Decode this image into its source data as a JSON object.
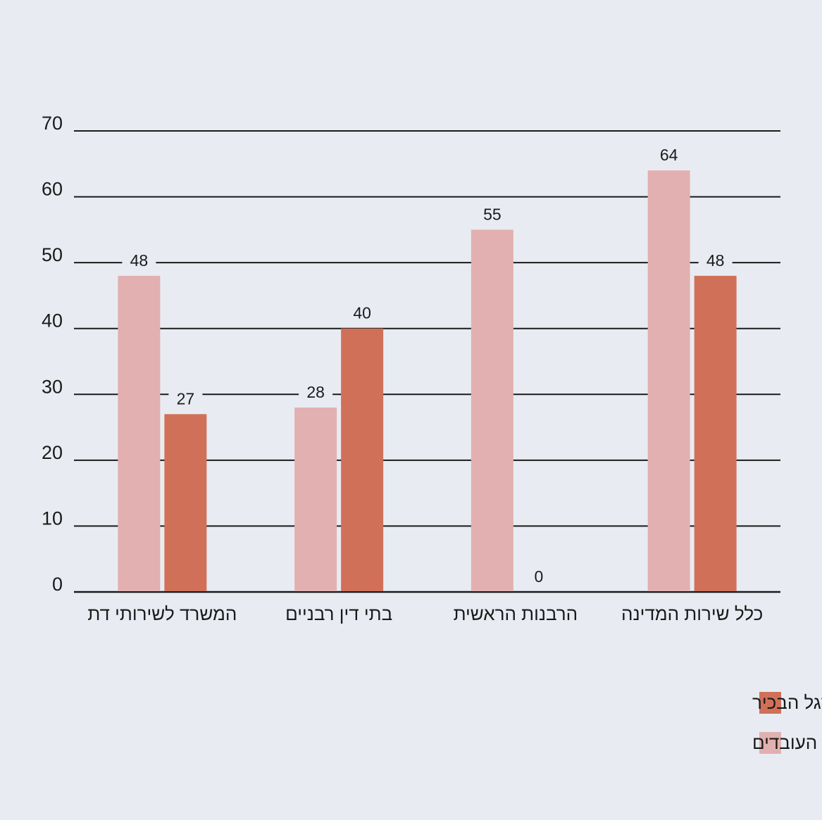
{
  "chart_data": {
    "type": "bar",
    "title": "",
    "xlabel": "",
    "ylabel": "",
    "ylim": [
      0,
      70
    ],
    "yticks": [
      "0",
      "10",
      "20",
      "30",
      "40",
      "50",
      "60",
      "70"
    ],
    "grid": true,
    "legend_position": "bottom-right",
    "direction": "rtl",
    "categories": [
      "כלל שירות המדינה",
      "הרבנות הראשית",
      "בתי דין רבניים",
      "המשרד לשירותי דת"
    ],
    "series": [
      {
        "name": "מהסגל הבכיר",
        "color": "#d17059",
        "values": [
          48,
          0,
          40,
          27
        ]
      },
      {
        "name": "מכלל העובדים",
        "color": "#e2b0b0",
        "values": [
          64,
          55,
          28,
          48
        ]
      }
    ]
  }
}
